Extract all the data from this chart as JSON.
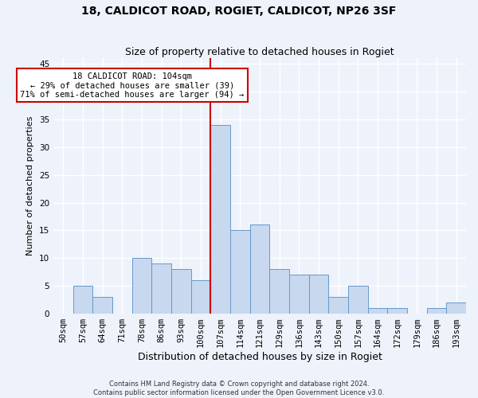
{
  "title": "18, CALDICOT ROAD, ROGIET, CALDICOT, NP26 3SF",
  "subtitle": "Size of property relative to detached houses in Rogiet",
  "xlabel": "Distribution of detached houses by size in Rogiet",
  "ylabel": "Number of detached properties",
  "categories": [
    "50sqm",
    "57sqm",
    "64sqm",
    "71sqm",
    "78sqm",
    "86sqm",
    "93sqm",
    "100sqm",
    "107sqm",
    "114sqm",
    "121sqm",
    "129sqm",
    "136sqm",
    "143sqm",
    "150sqm",
    "157sqm",
    "164sqm",
    "172sqm",
    "179sqm",
    "186sqm",
    "193sqm"
  ],
  "values": [
    0,
    5,
    3,
    0,
    10,
    9,
    8,
    6,
    34,
    15,
    16,
    8,
    7,
    7,
    3,
    5,
    1,
    1,
    0,
    1,
    2
  ],
  "bar_color": "#c8d8ee",
  "bar_edgecolor": "#6699cc",
  "vline_x_index": 8,
  "vline_color": "#cc0000",
  "annotation_text": "18 CALDICOT ROAD: 104sqm\n← 29% of detached houses are smaller (39)\n71% of semi-detached houses are larger (94) →",
  "annotation_box_color": "#ffffff",
  "annotation_box_edgecolor": "#cc0000",
  "ylim": [
    0,
    46
  ],
  "yticks": [
    0,
    5,
    10,
    15,
    20,
    25,
    30,
    35,
    40,
    45
  ],
  "title_fontsize": 10,
  "subtitle_fontsize": 9,
  "xlabel_fontsize": 9,
  "ylabel_fontsize": 8,
  "tick_fontsize": 7.5,
  "annotation_fontsize": 7.5,
  "footer_text": "Contains HM Land Registry data © Crown copyright and database right 2024.\nContains public sector information licensed under the Open Government Licence v3.0.",
  "background_color": "#eef2fb",
  "grid_color": "#ffffff"
}
